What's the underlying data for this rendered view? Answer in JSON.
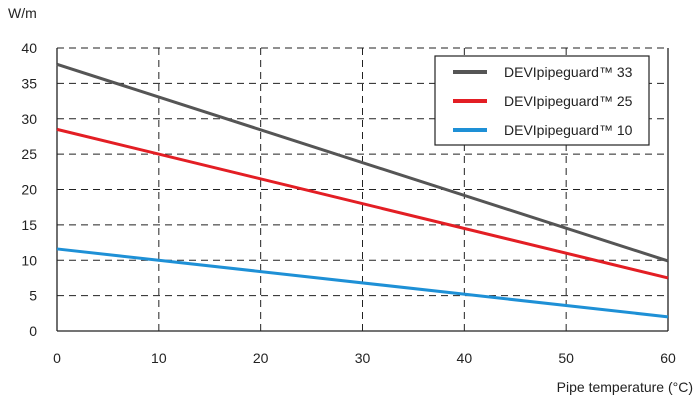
{
  "chart_data": {
    "type": "line",
    "title": "",
    "ylabel": "W/m",
    "xlabel": "Pipe temperature (°C)",
    "xlim": [
      0,
      60
    ],
    "ylim": [
      0,
      40
    ],
    "x_ticks": [
      0,
      10,
      20,
      30,
      40,
      50,
      60
    ],
    "y_ticks": [
      0,
      5,
      10,
      15,
      20,
      25,
      30,
      35,
      40
    ],
    "grid": "dashed",
    "legend_position": "top-right",
    "series": [
      {
        "name": "DEVIpipeguard™ 33",
        "color": "#555555",
        "x": [
          0,
          60
        ],
        "y": [
          37.7,
          9.9
        ]
      },
      {
        "name": "DEVIpipeguard™ 25",
        "color": "#e31e24",
        "x": [
          0,
          60
        ],
        "y": [
          28.5,
          7.5
        ]
      },
      {
        "name": "DEVIpipeguard™ 10",
        "color": "#1e90d6",
        "x": [
          0,
          60
        ],
        "y": [
          11.6,
          2.0
        ]
      }
    ]
  }
}
